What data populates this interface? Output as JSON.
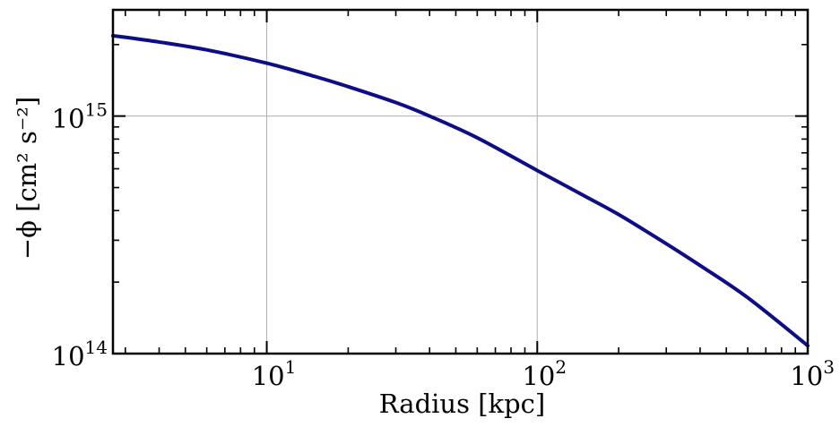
{
  "chart_data": {
    "type": "line",
    "xlabel": "Radius [kpc]",
    "ylabel": "−ϕ   [cm² s⁻²]",
    "xscale": "log",
    "yscale": "log",
    "xlim": [
      2.7,
      1000
    ],
    "ylim": [
      100000000000000.0,
      2800000000000000.0
    ],
    "grid": true,
    "x_ticks": [
      {
        "value": 10,
        "base": "10",
        "exp": "1"
      },
      {
        "value": 100,
        "base": "10",
        "exp": "2"
      },
      {
        "value": 1000,
        "base": "10",
        "exp": "3"
      }
    ],
    "y_ticks": [
      {
        "value": 100000000000000.0,
        "base": "10",
        "exp": "14"
      },
      {
        "value": 1000000000000000.0,
        "base": "10",
        "exp": "15"
      }
    ],
    "series": [
      {
        "color": "#0d0d85",
        "x": [
          2.7,
          4,
          6,
          10,
          15,
          20,
          30,
          40,
          60,
          100,
          150,
          200,
          300,
          400,
          600,
          1000
        ],
        "y": [
          2180000000000000.0,
          2050000000000000.0,
          1900000000000000.0,
          1670000000000000.0,
          1470000000000000.0,
          1330000000000000.0,
          1140000000000000.0,
          1000000000000000.0,
          810000000000000.0,
          590000000000000.0,
          460000000000000.0,
          385000000000000.0,
          290000000000000.0,
          235000000000000.0,
          172000000000000.0,
          108000000000000.0
        ]
      }
    ]
  }
}
